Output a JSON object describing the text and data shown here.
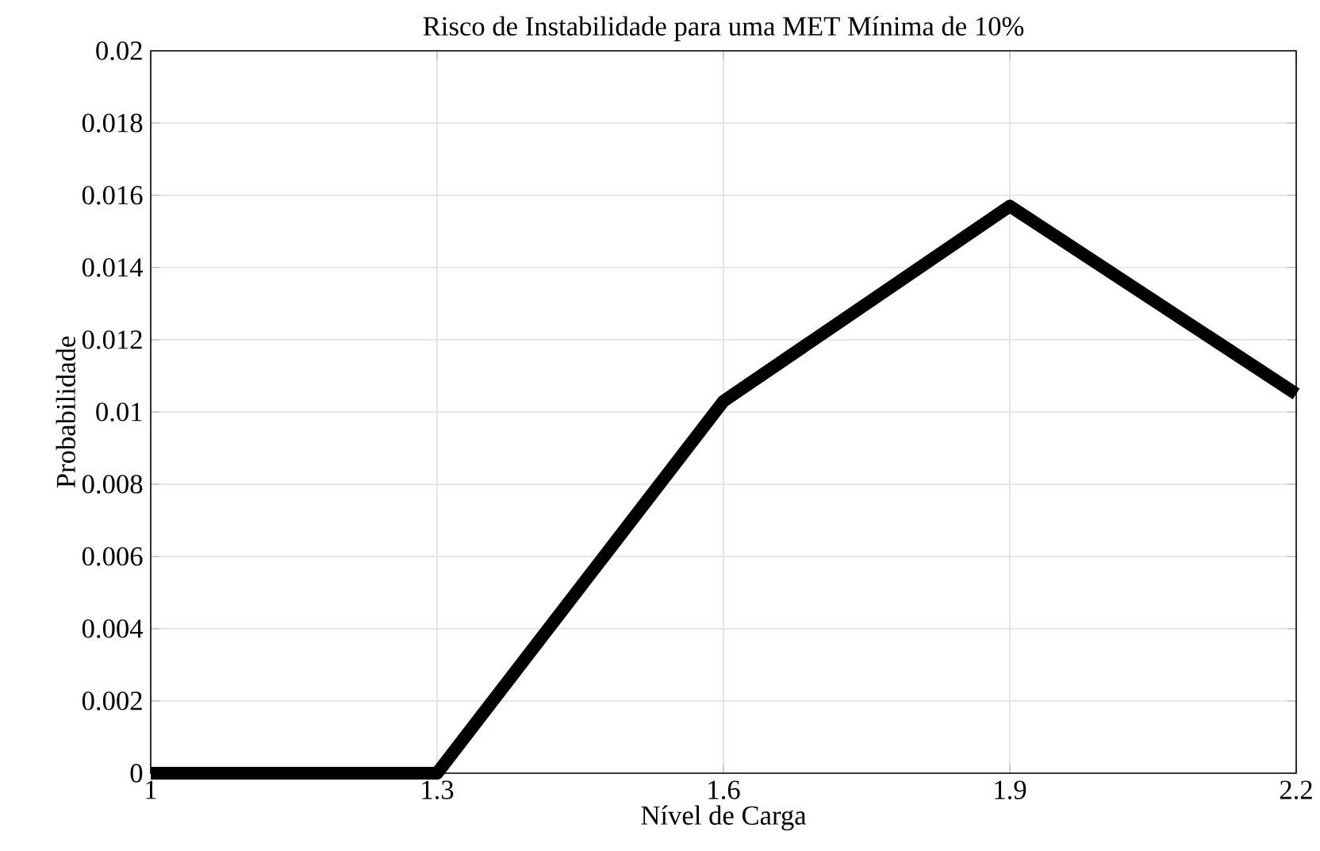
{
  "chart_data": {
    "type": "line",
    "title": "Risco de Instabilidade para uma MET Mínima de 10%",
    "xlabel": "Nível de Carga",
    "ylabel": "Probabilidade",
    "x": [
      1,
      1.3,
      1.6,
      1.9,
      2.2
    ],
    "series": [
      {
        "color": "#000000",
        "values": [
          0,
          0,
          0.0103,
          0.0157,
          0.0105
        ]
      }
    ],
    "xlim": [
      1,
      2.2
    ],
    "ylim": [
      0,
      0.02
    ],
    "xticks": [
      1,
      1.3,
      1.6,
      1.9,
      2.2
    ],
    "yticks": [
      0,
      0.002,
      0.004,
      0.006,
      0.008,
      0.01,
      0.012,
      0.014,
      0.016,
      0.018,
      0.02
    ],
    "grid": true,
    "marker": "none",
    "line_style": "solid"
  }
}
